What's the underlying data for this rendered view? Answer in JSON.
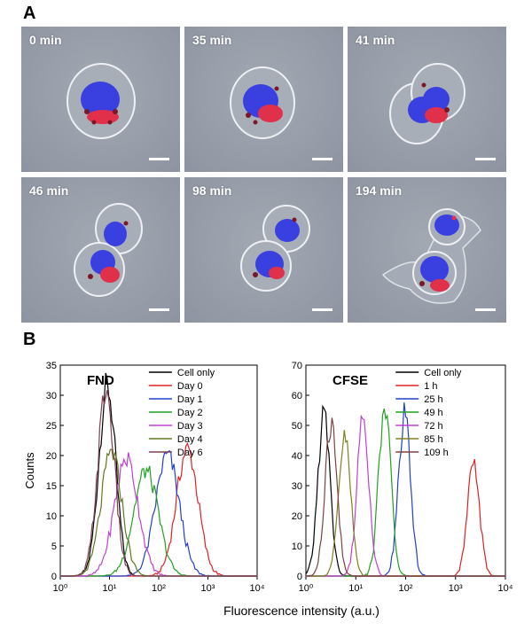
{
  "panel_a": {
    "letter": "A",
    "frames": [
      {
        "time": "0 min"
      },
      {
        "time": "35 min"
      },
      {
        "time": "41 min"
      },
      {
        "time": "46 min"
      },
      {
        "time": "98 min"
      },
      {
        "time": "194 min"
      }
    ]
  },
  "panel_b": {
    "letter": "B",
    "shared_xlabel": "Fluorescence intensity (a.u.)"
  },
  "chart_data": [
    {
      "type": "line",
      "title": "FND",
      "ylabel": "Counts",
      "xscale": "log",
      "xlim": [
        1,
        10000
      ],
      "ylim": [
        0,
        35
      ],
      "yticks": [
        0,
        5,
        10,
        15,
        20,
        25,
        30,
        35
      ],
      "xticks": [
        1,
        10,
        100,
        1000,
        10000
      ],
      "xtick_labels": [
        "10⁰",
        "10¹",
        "10²",
        "10³",
        "10⁴"
      ],
      "legend": "top-right",
      "series": [
        {
          "name": "Cell only",
          "color": "#000000",
          "peak_x": 9,
          "peak_y": 31.5,
          "width": 0.17
        },
        {
          "name": "Day 0",
          "color": "#e02020",
          "peak_x": 380,
          "peak_y": 21,
          "width": 0.22
        },
        {
          "name": "Day 1",
          "color": "#2040d0",
          "peak_x": 150,
          "peak_y": 20,
          "width": 0.24
        },
        {
          "name": "Day 2",
          "color": "#20a020",
          "peak_x": 55,
          "peak_y": 17.5,
          "width": 0.25
        },
        {
          "name": "Day 3",
          "color": "#c040d0",
          "peak_x": 22,
          "peak_y": 19.5,
          "width": 0.24
        },
        {
          "name": "Day 4",
          "color": "#607820",
          "peak_x": 11,
          "peak_y": 20.5,
          "width": 0.21
        },
        {
          "name": "Day 6",
          "color": "#804050",
          "peak_x": 8.5,
          "peak_y": 30.5,
          "width": 0.17
        }
      ]
    },
    {
      "type": "line",
      "title": "CFSE",
      "ylabel": "",
      "xscale": "log",
      "xlim": [
        1,
        10000
      ],
      "ylim": [
        0,
        70
      ],
      "yticks": [
        0,
        10,
        20,
        30,
        40,
        50,
        60,
        70
      ],
      "xticks": [
        1,
        10,
        100,
        1000,
        10000
      ],
      "xtick_labels": [
        "10⁰",
        "10¹",
        "10²",
        "10³",
        "10⁴"
      ],
      "legend": "top-right",
      "series": [
        {
          "name": "Cell only",
          "color": "#000000",
          "peak_x": 2.3,
          "peak_y": 54,
          "width": 0.12
        },
        {
          "name": "1 h",
          "color": "#e02020",
          "peak_x": 2300,
          "peak_y": 37,
          "width": 0.12
        },
        {
          "name": "25 h",
          "color": "#2040d0",
          "peak_x": 95,
          "peak_y": 53,
          "width": 0.12
        },
        {
          "name": "49 h",
          "color": "#20a020",
          "peak_x": 38,
          "peak_y": 57,
          "width": 0.12
        },
        {
          "name": "72 h",
          "color": "#c040d0",
          "peak_x": 14,
          "peak_y": 52,
          "width": 0.12
        },
        {
          "name": "85 h",
          "color": "#808020",
          "peak_x": 6,
          "peak_y": 46,
          "width": 0.12
        },
        {
          "name": "109 h",
          "color": "#804040",
          "peak_x": 3.2,
          "peak_y": 50,
          "width": 0.12
        }
      ]
    }
  ]
}
